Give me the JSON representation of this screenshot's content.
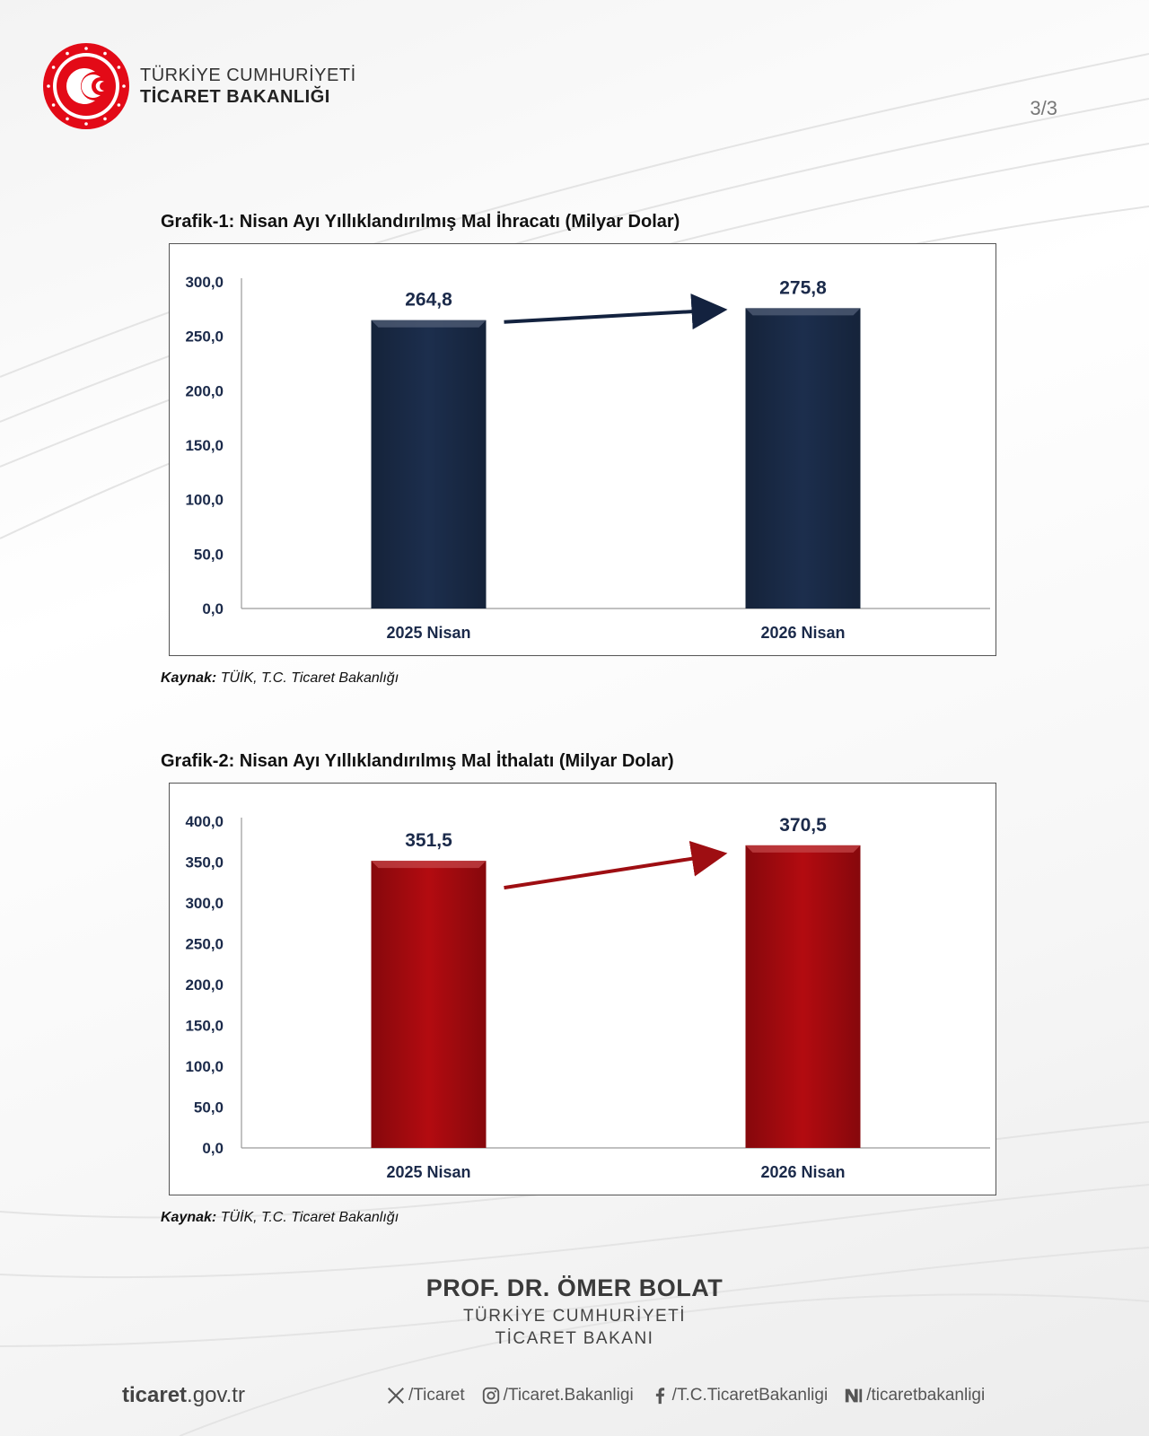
{
  "header": {
    "ministry_line1": "TÜRKİYE CUMHURİYETİ",
    "ministry_line2": "TİCARET BAKANLIĞI",
    "page_number": "3/3"
  },
  "chart_data": [
    {
      "type": "bar",
      "title": "Grafik-1: Nisan Ayı Yıllıklandırılmış Mal İhracatı (Milyar Dolar)",
      "categories": [
        "2025 Nisan",
        "2026 Nisan"
      ],
      "values": [
        264.8,
        275.8
      ],
      "value_labels": [
        "264,8",
        "275,8"
      ],
      "ylim": [
        0,
        300
      ],
      "yticks": [
        "0,0",
        "50,0",
        "100,0",
        "150,0",
        "200,0",
        "250,0",
        "300,0"
      ],
      "color": "#1c2e4d",
      "arrow_color": "#13223f",
      "xlabel": "",
      "ylabel": "",
      "source_label": "Kaynak:",
      "source_text": " TÜİK, T.C. Ticaret Bakanlığı"
    },
    {
      "type": "bar",
      "title": "Grafik-2: Nisan Ayı Yıllıklandırılmış Mal İthalatı (Milyar Dolar)",
      "categories": [
        "2025 Nisan",
        "2026 Nisan"
      ],
      "values": [
        351.5,
        370.5
      ],
      "value_labels": [
        "351,5",
        "370,5"
      ],
      "ylim": [
        0,
        400
      ],
      "yticks": [
        "0,0",
        "50,0",
        "100,0",
        "150,0",
        "200,0",
        "250,0",
        "300,0",
        "350,0",
        "400,0"
      ],
      "color": "#b30b10",
      "arrow_color": "#9e0e12",
      "xlabel": "",
      "ylabel": "",
      "source_label": "Kaynak:",
      "source_text": " TÜİK, T.C. Ticaret Bakanlığı"
    }
  ],
  "signature": {
    "name": "PROF. DR. ÖMER BOLAT",
    "line1": "TÜRKİYE CUMHURİYETİ",
    "line2": "TİCARET BAKANI"
  },
  "footer": {
    "site_bold": "ticaret",
    "site_rest": ".gov.tr",
    "socials": [
      {
        "icon": "x-icon",
        "text": "/Ticaret"
      },
      {
        "icon": "instagram-icon",
        "text": "/Ticaret.Bakanligi"
      },
      {
        "icon": "facebook-icon",
        "text": "/T.C.TicaretBakanligi"
      },
      {
        "icon": "nsosyal-icon",
        "text": "/ticaretbakanligi"
      }
    ]
  }
}
